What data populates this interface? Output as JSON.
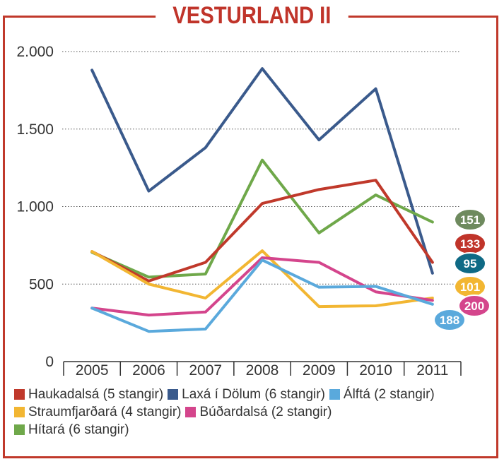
{
  "title": "VESTURLAND II",
  "chart_data": {
    "type": "line",
    "x": [
      "2005",
      "2006",
      "2007",
      "2008",
      "2009",
      "2010",
      "2011"
    ],
    "ylim": [
      0,
      2000
    ],
    "yticks": [
      0,
      500,
      1000,
      1500,
      2000
    ],
    "ytick_labels": [
      "0",
      "500",
      "1.000",
      "1.500",
      "2.000"
    ],
    "grid": "horizontal dotted",
    "legend_position": "bottom",
    "series": [
      {
        "name": "Haukadalsá (5 stangir)",
        "color": "#c0392b",
        "values": [
          710,
          520,
          640,
          1020,
          1110,
          1170,
          640
        ],
        "end_label": "133"
      },
      {
        "name": "Laxá í Dölum (6 stangir)",
        "color": "#3a5a8c",
        "values": [
          1880,
          1100,
          1380,
          1890,
          1430,
          1760,
          570
        ],
        "end_label": "95"
      },
      {
        "name": "Álftá (2 stangir)",
        "color": "#5aa9dc",
        "values": [
          345,
          195,
          210,
          655,
          480,
          485,
          370
        ],
        "end_label": "188"
      },
      {
        "name": "Straumfjarðará (4 stangir)",
        "color": "#f2b632",
        "values": [
          710,
          500,
          410,
          715,
          355,
          360,
          410
        ],
        "end_label": "101"
      },
      {
        "name": "Búðardalsá (2 stangir)",
        "color": "#d4458c",
        "values": [
          345,
          300,
          320,
          670,
          640,
          450,
          395
        ],
        "end_label": "200"
      },
      {
        "name": "Hítará (6 stangir)",
        "color": "#6fa84a",
        "values": [
          705,
          545,
          565,
          1300,
          830,
          1075,
          900
        ],
        "end_label": "151"
      }
    ],
    "end_badges": [
      {
        "label": "151",
        "color": "#6e8a5e"
      },
      {
        "label": "133",
        "color": "#c0342a"
      },
      {
        "label": "95",
        "color": "#0f6a85"
      },
      {
        "label": "101",
        "color": "#f2b632"
      },
      {
        "label": "200",
        "color": "#d4458c"
      },
      {
        "label": "188",
        "color": "#5aa9dc"
      }
    ]
  }
}
